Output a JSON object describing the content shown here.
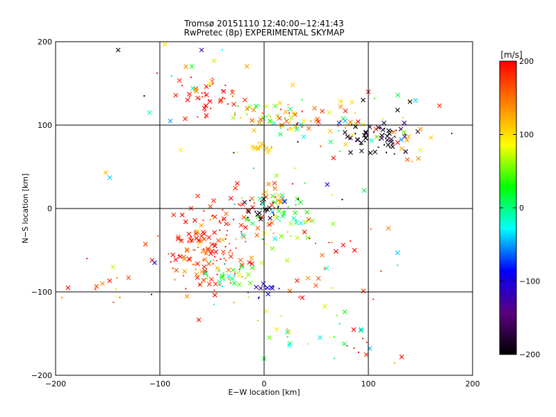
{
  "chart_data": [
    {
      "type": "scatter",
      "title": "Tromsø 20151110 12:40:00−12:41:43",
      "subtitle": "RwPretec (8p) EXPERIMENTAL SKYMAP",
      "xlabel": "E−W location [km]",
      "ylabel": "N−S location [km]",
      "xlim": [
        -200,
        200
      ],
      "ylim": [
        -200,
        200
      ],
      "x_ticks": [
        -200,
        -100,
        0,
        100,
        200
      ],
      "y_ticks": [
        -200,
        -100,
        0,
        100,
        200
      ],
      "x_tick_labels": [
        "−200",
        "−100",
        "0",
        "100",
        "200"
      ],
      "y_tick_labels": [
        "−200",
        "−100",
        "0",
        "100",
        "200"
      ],
      "grid": true,
      "grid_lines": {
        "x": [
          -100,
          0,
          100
        ],
        "y": [
          -100,
          0,
          100
        ]
      },
      "markers": [
        "x",
        "dot"
      ],
      "colorbar": {
        "label": "[m/s]",
        "range": [
          -200,
          200
        ],
        "ticks": [
          200,
          100,
          0,
          -100,
          -200
        ],
        "tick_labels": [
          "200",
          "100",
          "0",
          "−100",
          "−200"
        ],
        "colormap": [
          "#000000",
          "#5a0080",
          "#0000ff",
          "#00ffff",
          "#00ff00",
          "#ffff00",
          "#ff8000",
          "#ff0000"
        ]
      },
      "clusters": [
        {
          "cx": -55,
          "cy": -55,
          "sx": 22,
          "sy": 25,
          "n": 130,
          "v": 180,
          "vs": 30
        },
        {
          "cx": -40,
          "cy": -85,
          "sx": 15,
          "sy": 10,
          "n": 35,
          "v": 30,
          "vs": 40
        },
        {
          "cx": -30,
          "cy": -10,
          "sx": 20,
          "sy": 20,
          "n": 45,
          "v": 185,
          "vs": 25
        },
        {
          "cx": 15,
          "cy": -10,
          "sx": 18,
          "sy": 20,
          "n": 60,
          "v": 40,
          "vs": 50
        },
        {
          "cx": 0,
          "cy": 0,
          "sx": 8,
          "sy": 10,
          "n": 20,
          "v": -190,
          "vs": 20
        },
        {
          "cx": 0,
          "cy": -95,
          "sx": 6,
          "sy": 5,
          "n": 15,
          "v": -110,
          "vs": 20
        },
        {
          "cx": 60,
          "cy": -60,
          "sx": 25,
          "sy": 30,
          "n": 25,
          "v": 180,
          "vs": 30
        },
        {
          "cx": 50,
          "cy": -140,
          "sx": 30,
          "sy": 25,
          "n": 25,
          "v": 60,
          "vs": 80
        },
        {
          "cx": 90,
          "cy": -165,
          "sx": 8,
          "sy": 8,
          "n": 7,
          "v": 190,
          "vs": 15
        },
        {
          "cx": -50,
          "cy": 130,
          "sx": 15,
          "sy": 15,
          "n": 40,
          "v": 190,
          "vs": 20
        },
        {
          "cx": -55,
          "cy": 160,
          "sx": 20,
          "sy": 15,
          "n": 15,
          "v": 150,
          "vs": 90
        },
        {
          "cx": 10,
          "cy": 110,
          "sx": 20,
          "sy": 10,
          "n": 60,
          "v": 60,
          "vs": 60
        },
        {
          "cx": 50,
          "cy": 105,
          "sx": 25,
          "sy": 12,
          "n": 40,
          "v": 130,
          "vs": 60
        },
        {
          "cx": 110,
          "cy": 85,
          "sx": 15,
          "sy": 10,
          "n": 60,
          "v": -185,
          "vs": 20
        },
        {
          "cx": 120,
          "cy": 95,
          "sx": 25,
          "sy": 20,
          "n": 25,
          "v": 60,
          "vs": 100
        },
        {
          "cx": 0,
          "cy": 72,
          "sx": 6,
          "sy": 3,
          "n": 15,
          "v": 110,
          "vs": 10
        },
        {
          "cx": -120,
          "cy": -95,
          "sx": 30,
          "sy": 10,
          "n": 12,
          "v": 160,
          "vs": 40
        },
        {
          "cx": 30,
          "cy": 20,
          "sx": 30,
          "sy": 25,
          "n": 20,
          "v": 0,
          "vs": 120
        }
      ],
      "points": [
        {
          "x": -140,
          "y": 190,
          "v": -200,
          "m": "x"
        },
        {
          "x": -188,
          "y": -95,
          "v": 200,
          "m": "x"
        },
        {
          "x": -155,
          "y": -90,
          "v": 140,
          "m": "x"
        },
        {
          "x": -170,
          "y": -60,
          "v": 200,
          "m": "dot"
        },
        {
          "x": -145,
          "y": -70,
          "v": 70,
          "m": "x"
        },
        {
          "x": -130,
          "y": -83,
          "v": 170,
          "m": "x"
        },
        {
          "x": -152,
          "y": 43,
          "v": 120,
          "m": "x"
        },
        {
          "x": -148,
          "y": 37,
          "v": -40,
          "m": "x"
        },
        {
          "x": -110,
          "y": 115,
          "v": -10,
          "m": "x"
        },
        {
          "x": -90,
          "y": 105,
          "v": -50,
          "m": "x"
        },
        {
          "x": -80,
          "y": 70,
          "v": 90,
          "m": "x"
        },
        {
          "x": -105,
          "y": -65,
          "v": -90,
          "m": "x"
        },
        {
          "x": -108,
          "y": -103,
          "v": -170,
          "m": "dot"
        },
        {
          "x": 128,
          "y": -53,
          "v": -40,
          "m": "x"
        },
        {
          "x": 128,
          "y": -68,
          "v": -40,
          "m": "dot"
        },
        {
          "x": 132,
          "y": -178,
          "v": 200,
          "m": "x"
        },
        {
          "x": 125,
          "y": -185,
          "v": 130,
          "m": "dot"
        },
        {
          "x": 122,
          "y": 80,
          "v": -190,
          "m": "x"
        },
        {
          "x": 132,
          "y": 72,
          "v": 130,
          "m": "x"
        },
        {
          "x": 150,
          "y": 95,
          "v": 140,
          "m": "x"
        },
        {
          "x": 160,
          "y": 85,
          "v": 110,
          "m": "x"
        },
        {
          "x": 180,
          "y": 90,
          "v": -150,
          "m": "dot"
        },
        {
          "x": 100,
          "y": 140,
          "v": 200,
          "m": "x"
        },
        {
          "x": 95,
          "y": 130,
          "v": -200,
          "m": "x"
        },
        {
          "x": 140,
          "y": 128,
          "v": -200,
          "m": "x"
        },
        {
          "x": 150,
          "y": 70,
          "v": 80,
          "m": "x"
        },
        {
          "x": 148,
          "y": 60,
          "v": 140,
          "m": "x"
        },
        {
          "x": -60,
          "y": 190,
          "v": -130,
          "m": "x"
        },
        {
          "x": -40,
          "y": 190,
          "v": -30,
          "m": "dot"
        },
        {
          "x": -75,
          "y": 170,
          "v": 140,
          "m": "x"
        },
        {
          "x": -115,
          "y": 135,
          "v": -200,
          "m": "dot"
        },
        {
          "x": 93,
          "y": -145,
          "v": -40,
          "m": "x"
        },
        {
          "x": 0,
          "y": -180,
          "v": 20,
          "m": "x"
        }
      ]
    }
  ]
}
